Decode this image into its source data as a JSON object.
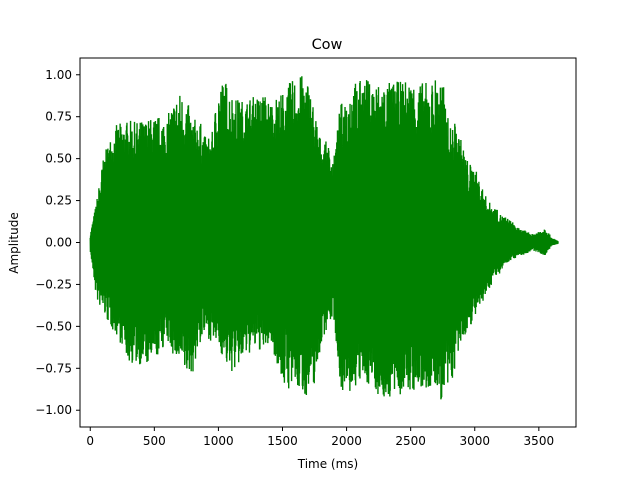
{
  "chart_data": {
    "type": "line",
    "title": "Cow",
    "xlabel": "Time (ms)",
    "ylabel": "Amplitude",
    "xlim": [
      -80,
      3790
    ],
    "ylim": [
      -1.1,
      1.1
    ],
    "xticks": [
      0,
      500,
      1000,
      1500,
      2000,
      2500,
      3000,
      3500
    ],
    "xtick_labels": [
      "0",
      "500",
      "1000",
      "1500",
      "2000",
      "2500",
      "3000",
      "3500"
    ],
    "yticks": [
      -1.0,
      -0.75,
      -0.5,
      -0.25,
      0.0,
      0.25,
      0.5,
      0.75,
      1.0
    ],
    "ytick_labels": [
      "−1.00",
      "−0.75",
      "−0.50",
      "−0.25",
      "0.00",
      "0.25",
      "0.50",
      "0.75",
      "1.00"
    ],
    "grid": false,
    "colors": {
      "series": "#008000"
    },
    "series": [
      {
        "style": "waveform envelope",
        "x": [
          0,
          50,
          100,
          150,
          200,
          250,
          300,
          350,
          400,
          450,
          500,
          550,
          600,
          650,
          700,
          750,
          800,
          850,
          900,
          950,
          1000,
          1050,
          1100,
          1150,
          1200,
          1250,
          1300,
          1350,
          1400,
          1450,
          1500,
          1550,
          1600,
          1650,
          1700,
          1750,
          1800,
          1850,
          1900,
          1950,
          2000,
          2050,
          2100,
          2150,
          2200,
          2250,
          2300,
          2350,
          2400,
          2450,
          2500,
          2550,
          2600,
          2650,
          2700,
          2750,
          2800,
          2850,
          2900,
          2950,
          3000,
          3050,
          3100,
          3150,
          3200,
          3250,
          3300,
          3350,
          3400,
          3450,
          3500,
          3550,
          3600,
          3650
        ],
        "upper": [
          0.05,
          0.25,
          0.5,
          0.62,
          0.7,
          0.72,
          0.73,
          0.72,
          0.73,
          0.74,
          0.75,
          0.76,
          0.75,
          0.85,
          0.9,
          0.86,
          0.74,
          0.74,
          0.63,
          0.65,
          0.95,
          0.98,
          0.9,
          0.86,
          0.85,
          0.87,
          0.88,
          0.9,
          0.85,
          0.87,
          0.9,
          0.95,
          0.99,
          1.0,
          0.97,
          0.8,
          0.61,
          0.6,
          0.5,
          0.82,
          0.9,
          0.96,
          0.97,
          0.98,
          0.96,
          0.96,
          0.96,
          0.96,
          0.96,
          0.97,
          0.97,
          0.96,
          0.96,
          0.95,
          1.0,
          0.97,
          0.7,
          0.72,
          0.6,
          0.48,
          0.45,
          0.35,
          0.25,
          0.22,
          0.17,
          0.15,
          0.12,
          0.08,
          0.07,
          0.05,
          0.07,
          0.09,
          0.03,
          0.01
        ],
        "lower": [
          -0.05,
          -0.35,
          -0.42,
          -0.5,
          -0.55,
          -0.62,
          -0.72,
          -0.73,
          -0.73,
          -0.74,
          -0.72,
          -0.65,
          -0.6,
          -0.68,
          -0.75,
          -0.8,
          -0.78,
          -0.62,
          -0.55,
          -0.6,
          -0.62,
          -0.72,
          -0.78,
          -0.75,
          -0.7,
          -0.66,
          -0.64,
          -0.66,
          -0.6,
          -0.7,
          -0.85,
          -0.88,
          -0.88,
          -0.9,
          -0.92,
          -0.85,
          -0.62,
          -0.5,
          -0.45,
          -0.85,
          -0.95,
          -0.88,
          -0.85,
          -0.85,
          -0.84,
          -0.92,
          -0.95,
          -0.93,
          -0.92,
          -0.9,
          -0.9,
          -0.89,
          -0.9,
          -0.89,
          -0.88,
          -0.97,
          -0.9,
          -0.75,
          -0.6,
          -0.52,
          -0.45,
          -0.4,
          -0.3,
          -0.22,
          -0.18,
          -0.12,
          -0.1,
          -0.08,
          -0.07,
          -0.05,
          -0.06,
          -0.08,
          -0.02,
          -0.01
        ]
      }
    ]
  }
}
